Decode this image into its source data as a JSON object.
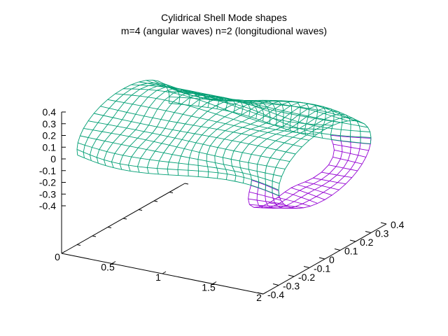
{
  "chart_data": {
    "type": "surface",
    "title": "Cylidrical Shell Mode shapes",
    "subtitle": "m=4 (angular waves) n=2 (longitudional waves)",
    "x_axis": {
      "range": [
        0,
        2
      ],
      "ticks": [
        "0",
        "0.5",
        "1",
        "1.5",
        "2"
      ]
    },
    "y_axis": {
      "range": [
        -0.4,
        0.4
      ],
      "ticks": [
        "-0.4",
        "-0.3",
        "-0.2",
        "-0.1",
        "0",
        "0.1",
        "0.2",
        "0.3",
        "0.4"
      ]
    },
    "z_axis": {
      "range": [
        -0.4,
        0.4
      ],
      "ticks": [
        "0.4",
        "0.3",
        "0.2",
        "0.1",
        "0",
        "-0.1",
        "-0.2",
        "-0.3",
        "-0.4"
      ]
    },
    "surface": {
      "shape": "cylindrical shell",
      "radius": 0.3,
      "length": 2,
      "angular_waves_m": 4,
      "longitudinal_waves_n": 2,
      "amplitude": 0.05
    },
    "colors": {
      "front_mesh": "#009e73",
      "back_mesh": "#9400d3",
      "axes": "#000000"
    }
  }
}
